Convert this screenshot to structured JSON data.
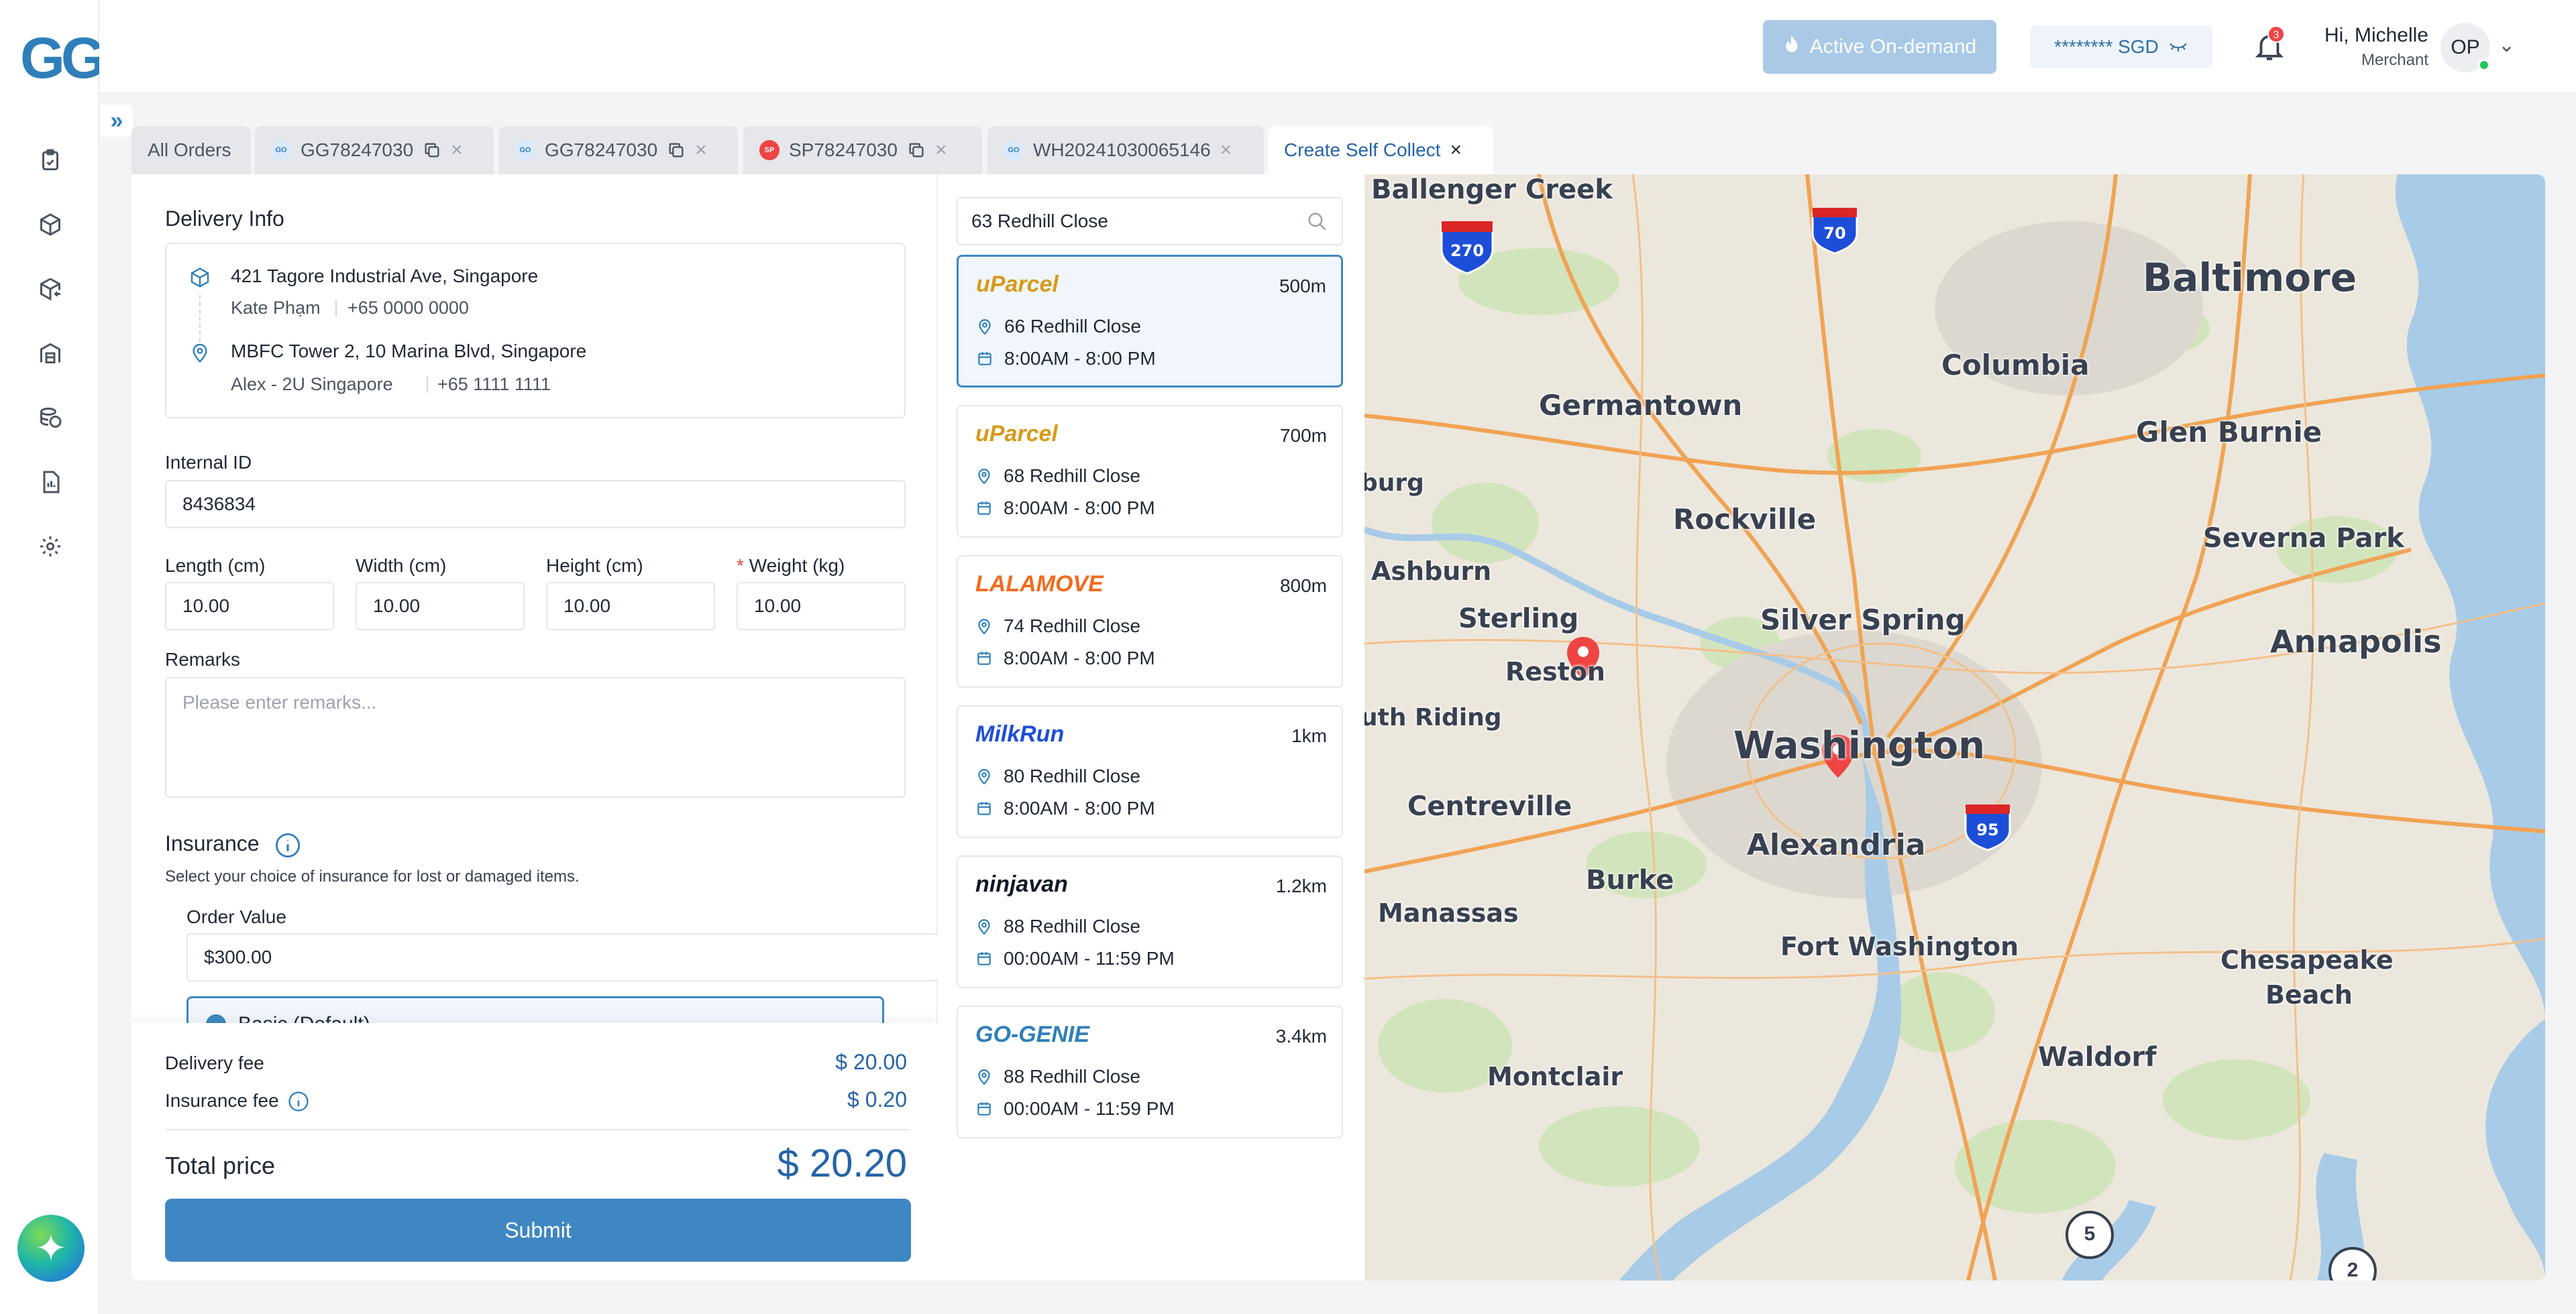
{
  "brand": {
    "logo_text": "GG"
  },
  "header": {
    "on_demand_label": "Active On-demand",
    "balance_label": "******** SGD",
    "notification_count": "3",
    "greeting": "Hi, Michelle",
    "role": "Merchant",
    "avatar_initials": "OP"
  },
  "sidebar": {
    "items": [
      "orders-icon",
      "package-icon",
      "package-return-icon",
      "warehouse-icon",
      "finance-icon",
      "report-icon",
      "settings-icon"
    ]
  },
  "tabs": [
    {
      "label": "All Orders"
    },
    {
      "label": "GG78247030",
      "logo": "GO"
    },
    {
      "label": "GG78247030",
      "logo": "GO"
    },
    {
      "label": "SP78247030",
      "logo": "SP"
    },
    {
      "label": "WH20241030065146",
      "logo": "GO"
    },
    {
      "label": "Create Self Collect"
    }
  ],
  "delivery": {
    "title": "Delivery Info",
    "pickup_address": "421 Tagore Industrial Ave, Singapore",
    "pickup_name": "Kate Phạm",
    "pickup_phone": "+65 0000 0000",
    "dropoff_address": "MBFC Tower 2, 10 Marina Blvd, Singapore",
    "dropoff_name": "Alex - 2U Singapore",
    "dropoff_phone": "+65 1111 1111"
  },
  "form": {
    "internal_id_label": "Internal ID",
    "internal_id_value": "8436834",
    "length_label": "Length (cm)",
    "length_value": "10.00",
    "width_label": "Width (cm)",
    "width_value": "10.00",
    "height_label": "Height (cm)",
    "height_value": "10.00",
    "weight_label": "Weight (kg)",
    "weight_value": "10.00",
    "remarks_label": "Remarks",
    "remarks_placeholder": "Please enter remarks..."
  },
  "insurance": {
    "title": "Insurance",
    "subtitle": "Select your choice of insurance for lost or damaged items.",
    "order_value_label": "Order Value",
    "order_value": "$300.00",
    "option_label": "Basic (Default)"
  },
  "summary": {
    "delivery_fee_label": "Delivery fee",
    "delivery_fee": "$ 20.00",
    "insurance_fee_label": "Insurance fee",
    "insurance_fee": "$ 0.20",
    "total_label": "Total price",
    "total": "$ 20.20",
    "submit_label": "Submit"
  },
  "search": {
    "value": "63 Redhill Close"
  },
  "locations": [
    {
      "brand": "uParcel",
      "color": "#d79a1a",
      "distance": "500m",
      "address": "66 Redhill Close",
      "hours": "8:00AM - 8:00 PM"
    },
    {
      "brand": "uParcel",
      "color": "#d79a1a",
      "distance": "700m",
      "address": "68 Redhill Close",
      "hours": "8:00AM - 8:00 PM"
    },
    {
      "brand": "LALAMOVE",
      "color": "#f26b1d",
      "distance": "800m",
      "address": "74 Redhill Close",
      "hours": "8:00AM - 8:00 PM"
    },
    {
      "brand": "MilkRun",
      "color": "#1d4ed8",
      "distance": "1km",
      "address": "80 Redhill Close",
      "hours": "8:00AM - 8:00 PM"
    },
    {
      "brand": "ninjavan",
      "color": "#111827",
      "distance": "1.2km",
      "address": "88 Redhill Close",
      "hours": "00:00AM - 11:59 PM"
    },
    {
      "brand": "GO-GENIE",
      "color": "#2f7fba",
      "distance": "3.4km",
      "address": "88 Redhill Close",
      "hours": "00:00AM - 11:59 PM"
    }
  ],
  "map": {
    "labels": [
      "Ballenger Creek",
      "Baltimore",
      "Columbia",
      "Germantown",
      "Glen Burnie",
      "burg",
      "Rockville",
      "Severna Park",
      "Ashburn",
      "Sterling",
      "Silver Spring",
      "Reston",
      "Annapolis",
      "uth Riding",
      "Washington",
      "Centreville",
      "Alexandria",
      "Burke",
      "Manassas",
      "Fort Washington",
      "Chesapeake",
      "Beach",
      "Montclair",
      "Waldorf"
    ],
    "shields": [
      "270",
      "70",
      "95"
    ],
    "markers": [
      "5",
      "2"
    ]
  }
}
